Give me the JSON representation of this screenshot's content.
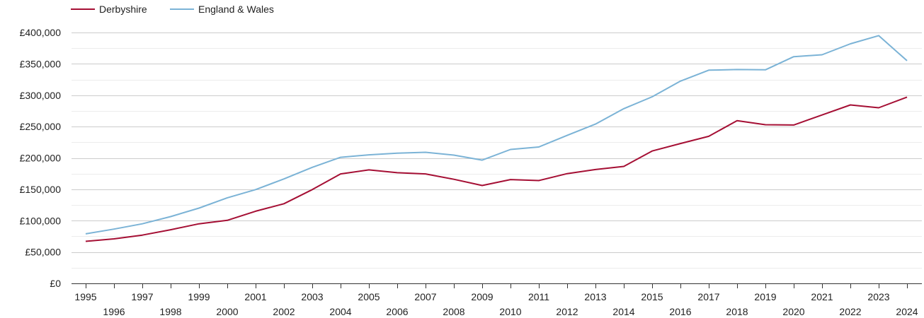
{
  "chart_data": {
    "type": "line",
    "x": [
      1995,
      1996,
      1997,
      1998,
      1999,
      2000,
      2001,
      2002,
      2003,
      2004,
      2005,
      2006,
      2007,
      2008,
      2009,
      2010,
      2011,
      2012,
      2013,
      2014,
      2015,
      2016,
      2017,
      2018,
      2019,
      2020,
      2021,
      2022,
      2023,
      2024
    ],
    "series": [
      {
        "name": "Derbyshire",
        "color": "#a50f34",
        "values": [
          67000,
          71000,
          77000,
          85500,
          95000,
          100500,
          115000,
          127000,
          149500,
          174500,
          181000,
          176500,
          174500,
          166000,
          156000,
          165500,
          164000,
          175000,
          181500,
          186500,
          211000,
          223000,
          234500,
          259500,
          253000,
          252500,
          268500,
          284500,
          280000,
          297000
        ]
      },
      {
        "name": "England & Wales",
        "color": "#7bb3d6",
        "values": [
          79000,
          86500,
          95000,
          106500,
          120000,
          136500,
          149500,
          166500,
          185000,
          201000,
          205000,
          207500,
          209000,
          204500,
          196500,
          213500,
          217500,
          236000,
          254000,
          278500,
          297500,
          322500,
          340000,
          341000,
          340500,
          361500,
          364500,
          382000,
          395000,
          355000
        ]
      }
    ],
    "ylim": [
      0,
      400000
    ],
    "ytick_values": [
      0,
      50000,
      100000,
      150000,
      200000,
      250000,
      300000,
      350000,
      400000
    ],
    "ytick_labels": [
      "£0",
      "£50,000",
      "£100,000",
      "£150,000",
      "£200,000",
      "£250,000",
      "£300,000",
      "£350,000",
      "£400,000"
    ],
    "xtick_labels": [
      "1995",
      "1996",
      "1997",
      "1998",
      "1999",
      "2000",
      "2001",
      "2002",
      "2003",
      "2004",
      "2005",
      "2006",
      "2007",
      "2008",
      "2009",
      "2010",
      "2011",
      "2012",
      "2013",
      "2014",
      "2015",
      "2016",
      "2017",
      "2018",
      "2019",
      "2020",
      "2021",
      "2022",
      "2023",
      "2024"
    ],
    "grid": true,
    "legend_position": "top-left",
    "title": "",
    "xlabel": "",
    "ylabel": ""
  }
}
